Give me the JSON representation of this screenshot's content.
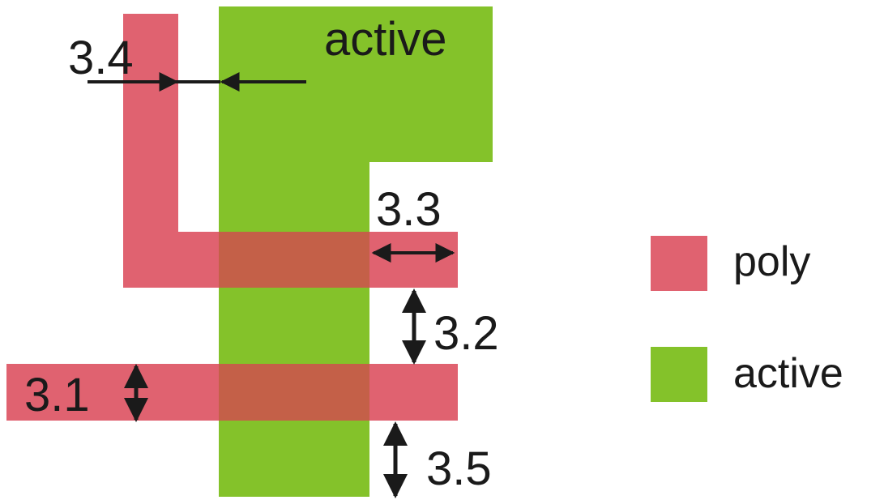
{
  "active_region_label": "active",
  "rules": {
    "r31": "3.1",
    "r32": "3.2",
    "r33": "3.3",
    "r34": "3.4",
    "r35": "3.5"
  },
  "legend": [
    {
      "label": "poly",
      "color": "#e06270"
    },
    {
      "label": "active",
      "color": "#84c22a"
    }
  ],
  "colors": {
    "poly": "#e06270",
    "active": "#84c22a",
    "overlap": "#c46048",
    "arrow": "#1a1a1a"
  }
}
